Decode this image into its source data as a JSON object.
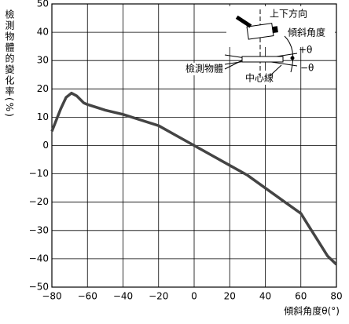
{
  "chart_data": {
    "type": "line",
    "y_label": "檢測物體的變化率(%)",
    "x_label": "傾斜角度θ(°)",
    "x": [
      -80,
      -75,
      -72,
      -69,
      -66,
      -62,
      -60,
      -50,
      -40,
      -30,
      -20,
      -10,
      0,
      10,
      20,
      30,
      40,
      50,
      60,
      64,
      70,
      75,
      80
    ],
    "values": [
      5,
      13,
      17,
      18.5,
      17.5,
      15,
      14.5,
      12.5,
      11,
      9,
      7,
      3.5,
      0,
      -3.5,
      -7,
      -10.5,
      -15,
      -19.5,
      -24,
      -28,
      -34,
      -39,
      -42
    ],
    "color": "#444444",
    "xlim": [
      -80,
      80
    ],
    "xticks": [
      {
        "value": -80,
        "label": "−80"
      },
      {
        "value": -60,
        "label": "−60"
      },
      {
        "value": -40,
        "label": "−40"
      },
      {
        "value": -20,
        "label": "−20"
      },
      0,
      20,
      40,
      60,
      80
    ],
    "ylim": [
      -50,
      50
    ],
    "yticks": [
      {
        "value": -50,
        "label": "−50"
      },
      {
        "value": -40,
        "label": "−40"
      },
      {
        "value": -30,
        "label": "−30"
      },
      {
        "value": -20,
        "label": "−20"
      },
      {
        "value": -10,
        "label": "−10"
      },
      0,
      10,
      20,
      30,
      40,
      50
    ],
    "grid": true,
    "annotations": {
      "vertical": "上下方向",
      "tilt": "傾斜角度",
      "plus": "+θ",
      "minus": "−θ",
      "object": "檢測物體",
      "center": "中心線"
    }
  }
}
